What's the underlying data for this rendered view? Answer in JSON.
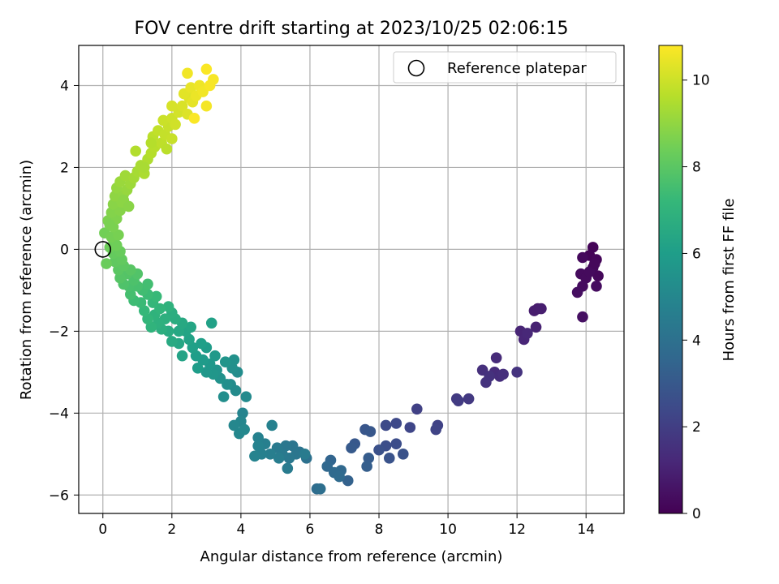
{
  "chart_data": {
    "type": "scatter",
    "title": "FOV centre drift starting at 2023/10/25 02:06:15",
    "xlabel": "Angular distance from reference (arcmin)",
    "ylabel": "Rotation from reference (arcmin)",
    "xlim": [
      -0.7,
      15.1
    ],
    "ylim": [
      -6.45,
      4.98
    ],
    "xticks": [
      0,
      2,
      4,
      6,
      8,
      10,
      12,
      14
    ],
    "yticks": [
      -6,
      -4,
      -2,
      0,
      2,
      4
    ],
    "grid": true,
    "legend": {
      "placement": "top-right",
      "entries": [
        "Reference platepar"
      ]
    },
    "reference_point": {
      "x": 0,
      "y": 0
    },
    "colorbar": {
      "label": "Hours from first FF file",
      "colormap": "viridis",
      "range": [
        0,
        10.8
      ],
      "ticks": [
        0,
        2,
        4,
        6,
        8,
        10
      ]
    },
    "series": [
      {
        "color_by": "hours",
        "points": [
          [
            14.2,
            0.05,
            0.1
          ],
          [
            14.1,
            -0.15,
            0.1
          ],
          [
            14.3,
            -0.25,
            0.15
          ],
          [
            14.2,
            -0.45,
            0.2
          ],
          [
            14.35,
            -0.65,
            0.2
          ],
          [
            13.9,
            -0.2,
            0.25
          ],
          [
            13.85,
            -0.6,
            0.3
          ],
          [
            14.0,
            -0.7,
            0.3
          ],
          [
            13.9,
            -0.9,
            0.35
          ],
          [
            14.3,
            -0.9,
            0.35
          ],
          [
            13.75,
            -1.05,
            0.4
          ],
          [
            13.9,
            -1.65,
            0.45
          ],
          [
            14.1,
            -0.55,
            0.3
          ],
          [
            14.25,
            -0.35,
            0.2
          ],
          [
            12.6,
            -1.45,
            0.8
          ],
          [
            12.5,
            -1.5,
            0.85
          ],
          [
            12.7,
            -1.45,
            0.9
          ],
          [
            12.55,
            -1.9,
            1.0
          ],
          [
            12.1,
            -2.0,
            1.1
          ],
          [
            12.2,
            -2.2,
            1.15
          ],
          [
            12.3,
            -2.05,
            1.2
          ],
          [
            11.4,
            -2.65,
            1.3
          ],
          [
            11.35,
            -3.0,
            1.35
          ],
          [
            11.5,
            -3.1,
            1.4
          ],
          [
            11.6,
            -3.05,
            1.45
          ],
          [
            11.0,
            -2.95,
            1.5
          ],
          [
            11.2,
            -3.1,
            1.55
          ],
          [
            11.1,
            -3.25,
            1.6
          ],
          [
            12.0,
            -3.0,
            1.6
          ],
          [
            10.6,
            -3.65,
            1.8
          ],
          [
            10.25,
            -3.65,
            1.85
          ],
          [
            10.3,
            -3.7,
            1.9
          ],
          [
            9.1,
            -3.9,
            2.1
          ],
          [
            9.7,
            -4.3,
            2.15
          ],
          [
            9.65,
            -4.4,
            2.2
          ],
          [
            8.9,
            -4.35,
            2.3
          ],
          [
            8.5,
            -4.25,
            2.4
          ],
          [
            8.2,
            -4.3,
            2.45
          ],
          [
            8.5,
            -4.75,
            2.55
          ],
          [
            8.2,
            -4.8,
            2.6
          ],
          [
            8.0,
            -4.9,
            2.7
          ],
          [
            8.7,
            -5.0,
            2.75
          ],
          [
            8.3,
            -5.1,
            2.8
          ],
          [
            7.6,
            -4.4,
            2.9
          ],
          [
            7.75,
            -4.45,
            2.95
          ],
          [
            7.3,
            -4.75,
            3.0
          ],
          [
            7.2,
            -4.85,
            3.05
          ],
          [
            7.7,
            -5.1,
            3.15
          ],
          [
            7.65,
            -5.3,
            3.2
          ],
          [
            7.1,
            -5.65,
            3.35
          ],
          [
            6.6,
            -5.15,
            3.5
          ],
          [
            6.5,
            -5.3,
            3.6
          ],
          [
            6.9,
            -5.4,
            3.65
          ],
          [
            6.7,
            -5.45,
            3.7
          ],
          [
            6.85,
            -5.55,
            3.75
          ],
          [
            6.2,
            -5.85,
            3.85
          ],
          [
            6.3,
            -5.85,
            3.9
          ],
          [
            5.9,
            -5.1,
            4.0
          ],
          [
            5.7,
            -4.95,
            4.1
          ],
          [
            5.5,
            -4.8,
            4.2
          ],
          [
            5.6,
            -5.0,
            4.25
          ],
          [
            5.3,
            -4.8,
            4.3
          ],
          [
            5.4,
            -5.1,
            4.35
          ],
          [
            5.2,
            -5.0,
            4.4
          ],
          [
            5.05,
            -4.85,
            4.45
          ],
          [
            5.35,
            -5.35,
            4.5
          ],
          [
            5.85,
            -5.0,
            4.5
          ],
          [
            5.1,
            -5.1,
            4.55
          ],
          [
            4.85,
            -5.0,
            4.6
          ],
          [
            4.7,
            -4.75,
            4.65
          ],
          [
            4.6,
            -5.0,
            4.7
          ],
          [
            4.5,
            -4.6,
            4.75
          ],
          [
            4.9,
            -4.3,
            4.75
          ],
          [
            4.5,
            -4.8,
            4.8
          ],
          [
            4.4,
            -5.05,
            4.85
          ],
          [
            4.05,
            -4.0,
            4.9
          ],
          [
            4.0,
            -4.2,
            4.95
          ],
          [
            3.95,
            -4.5,
            5.0
          ],
          [
            3.8,
            -4.3,
            5.0
          ],
          [
            4.1,
            -4.4,
            5.05
          ],
          [
            4.15,
            -3.6,
            5.15
          ],
          [
            3.85,
            -3.45,
            5.2
          ],
          [
            3.7,
            -3.3,
            5.2
          ],
          [
            3.9,
            -3.0,
            5.25
          ],
          [
            3.5,
            -3.6,
            5.3
          ],
          [
            3.6,
            -3.3,
            5.35
          ],
          [
            3.75,
            -2.9,
            5.4
          ],
          [
            3.8,
            -2.7,
            5.45
          ],
          [
            3.4,
            -3.15,
            5.5
          ],
          [
            3.3,
            -2.95,
            5.55
          ],
          [
            3.55,
            -2.75,
            5.6
          ],
          [
            3.2,
            -3.05,
            5.65
          ],
          [
            3.0,
            -3.0,
            5.7
          ],
          [
            3.1,
            -2.8,
            5.75
          ],
          [
            3.25,
            -2.6,
            5.8
          ],
          [
            2.9,
            -2.7,
            5.85
          ],
          [
            3.0,
            -2.4,
            5.9
          ],
          [
            2.75,
            -2.9,
            5.95
          ],
          [
            2.7,
            -2.6,
            6.0
          ],
          [
            2.85,
            -2.3,
            6.05
          ],
          [
            2.6,
            -2.4,
            6.1
          ],
          [
            3.15,
            -1.8,
            6.15
          ],
          [
            2.5,
            -2.2,
            6.2
          ],
          [
            2.3,
            -2.6,
            6.25
          ],
          [
            2.4,
            -2.0,
            6.3
          ],
          [
            2.55,
            -1.9,
            6.35
          ],
          [
            2.2,
            -2.3,
            6.4
          ],
          [
            2.2,
            -2.0,
            6.45
          ],
          [
            2.3,
            -1.8,
            6.5
          ],
          [
            2.0,
            -2.25,
            6.55
          ],
          [
            1.9,
            -2.0,
            6.6
          ],
          [
            2.1,
            -1.7,
            6.65
          ],
          [
            2.0,
            -1.55,
            6.7
          ],
          [
            1.7,
            -1.95,
            6.75
          ],
          [
            1.8,
            -1.7,
            6.8
          ],
          [
            1.6,
            -1.8,
            6.85
          ],
          [
            1.9,
            -1.4,
            6.9
          ],
          [
            1.5,
            -1.6,
            6.95
          ],
          [
            1.4,
            -1.9,
            7.0
          ],
          [
            1.65,
            -1.45,
            7.05
          ],
          [
            1.3,
            -1.7,
            7.1
          ],
          [
            1.45,
            -1.3,
            7.15
          ],
          [
            1.2,
            -1.5,
            7.2
          ],
          [
            1.55,
            -1.15,
            7.25
          ],
          [
            1.1,
            -1.3,
            7.3
          ],
          [
            1.3,
            -1.1,
            7.35
          ],
          [
            0.9,
            -1.25,
            7.4
          ],
          [
            1.15,
            -1.0,
            7.45
          ],
          [
            1.3,
            -0.85,
            7.5
          ],
          [
            0.8,
            -1.1,
            7.55
          ],
          [
            1.0,
            -0.9,
            7.6
          ],
          [
            0.75,
            -0.9,
            7.65
          ],
          [
            0.9,
            -0.75,
            7.7
          ],
          [
            0.6,
            -0.85,
            7.75
          ],
          [
            1.0,
            -0.6,
            7.8
          ],
          [
            0.7,
            -0.6,
            7.85
          ],
          [
            0.5,
            -0.7,
            7.9
          ],
          [
            0.8,
            -0.5,
            7.95
          ],
          [
            0.45,
            -0.5,
            8.0
          ],
          [
            0.6,
            -0.4,
            8.05
          ],
          [
            0.35,
            -0.3,
            8.1
          ],
          [
            0.55,
            -0.25,
            8.15
          ],
          [
            0.3,
            -0.1,
            8.2
          ],
          [
            0.5,
            -0.05,
            8.25
          ],
          [
            0.1,
            -0.35,
            8.3
          ],
          [
            0.2,
            0.05,
            8.35
          ],
          [
            0.4,
            0.1,
            8.4
          ],
          [
            0.05,
            0.4,
            8.45
          ],
          [
            0.25,
            0.3,
            8.5
          ],
          [
            0.45,
            0.35,
            8.55
          ],
          [
            0.3,
            0.55,
            8.6
          ],
          [
            0.15,
            0.7,
            8.65
          ],
          [
            0.4,
            0.75,
            8.7
          ],
          [
            0.25,
            0.9,
            8.75
          ],
          [
            0.5,
            0.95,
            8.8
          ],
          [
            0.3,
            1.1,
            8.85
          ],
          [
            0.55,
            1.15,
            8.9
          ],
          [
            0.35,
            1.3,
            8.95
          ],
          [
            0.6,
            1.35,
            9.0
          ],
          [
            0.4,
            1.5,
            9.05
          ],
          [
            0.7,
            1.45,
            9.1
          ],
          [
            0.5,
            1.65,
            9.15
          ],
          [
            0.8,
            1.6,
            9.2
          ],
          [
            0.65,
            1.8,
            9.25
          ],
          [
            0.9,
            1.75,
            9.3
          ],
          [
            1.0,
            1.9,
            9.35
          ],
          [
            1.1,
            2.05,
            9.4
          ],
          [
            1.2,
            1.85,
            9.45
          ],
          [
            1.3,
            2.2,
            9.5
          ],
          [
            0.95,
            2.4,
            9.55
          ],
          [
            1.4,
            2.35,
            9.6
          ],
          [
            1.5,
            2.5,
            9.65
          ],
          [
            1.45,
            2.75,
            9.7
          ],
          [
            1.7,
            2.6,
            9.75
          ],
          [
            1.6,
            2.9,
            9.8
          ],
          [
            1.8,
            2.8,
            9.85
          ],
          [
            1.9,
            3.0,
            9.9
          ],
          [
            1.75,
            3.15,
            9.95
          ],
          [
            2.0,
            3.2,
            10.0
          ],
          [
            2.1,
            3.05,
            10.05
          ],
          [
            2.2,
            3.35,
            10.1
          ],
          [
            2.0,
            3.5,
            10.15
          ],
          [
            2.3,
            3.5,
            10.2
          ],
          [
            2.45,
            3.3,
            10.25
          ],
          [
            2.5,
            3.7,
            10.3
          ],
          [
            2.35,
            3.8,
            10.35
          ],
          [
            2.6,
            3.6,
            10.4
          ],
          [
            2.55,
            3.95,
            10.45
          ],
          [
            2.7,
            3.75,
            10.5
          ],
          [
            2.8,
            4.0,
            10.55
          ],
          [
            2.9,
            3.85,
            10.6
          ],
          [
            2.45,
            4.3,
            10.6
          ],
          [
            3.0,
            3.5,
            10.65
          ],
          [
            3.1,
            4.0,
            10.7
          ],
          [
            3.2,
            4.15,
            10.7
          ],
          [
            3.0,
            4.4,
            10.75
          ],
          [
            2.65,
            3.2,
            10.75
          ],
          [
            2.0,
            2.7,
            9.9
          ],
          [
            1.85,
            2.45,
            9.7
          ],
          [
            1.2,
            2.0,
            9.4
          ],
          [
            0.6,
            1.2,
            8.9
          ],
          [
            0.2,
            0.6,
            8.6
          ],
          [
            0.75,
            1.05,
            8.85
          ],
          [
            1.4,
            2.6,
            9.6
          ]
        ]
      }
    ]
  }
}
